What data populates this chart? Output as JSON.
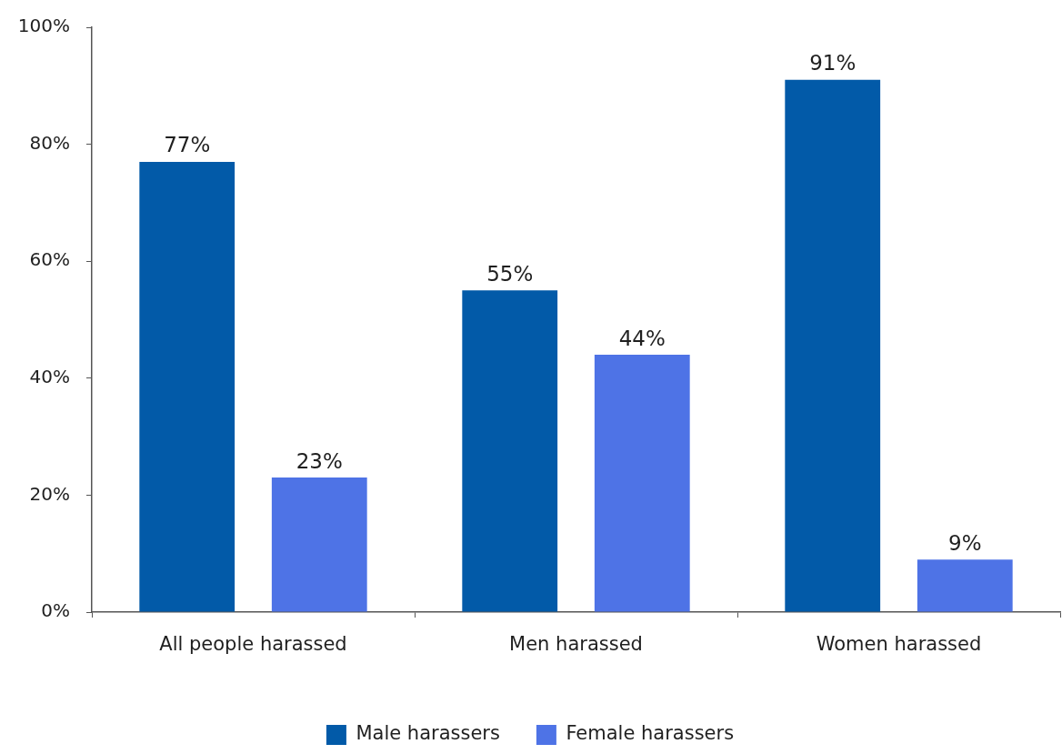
{
  "chart_data": {
    "type": "bar",
    "categories": [
      "All people harassed",
      "Men harassed",
      "Women harassed"
    ],
    "series": [
      {
        "name": "Male harassers",
        "color": "#025aa8",
        "values": [
          77,
          55,
          91
        ],
        "value_labels": [
          "77%",
          "55%",
          "91%"
        ]
      },
      {
        "name": "Female harassers",
        "color": "#4e73e6",
        "values": [
          23,
          44,
          9
        ],
        "value_labels": [
          "23%",
          "44%",
          "9%"
        ]
      }
    ],
    "ylim": [
      0,
      100
    ],
    "yticks": [
      {
        "value": 0,
        "label": "0%"
      },
      {
        "value": 20,
        "label": "20%"
      },
      {
        "value": 40,
        "label": "40%"
      },
      {
        "value": 60,
        "label": "60%"
      },
      {
        "value": 80,
        "label": "80%"
      },
      {
        "value": 100,
        "label": "100%"
      }
    ],
    "grid": false,
    "legend": "bottom"
  }
}
